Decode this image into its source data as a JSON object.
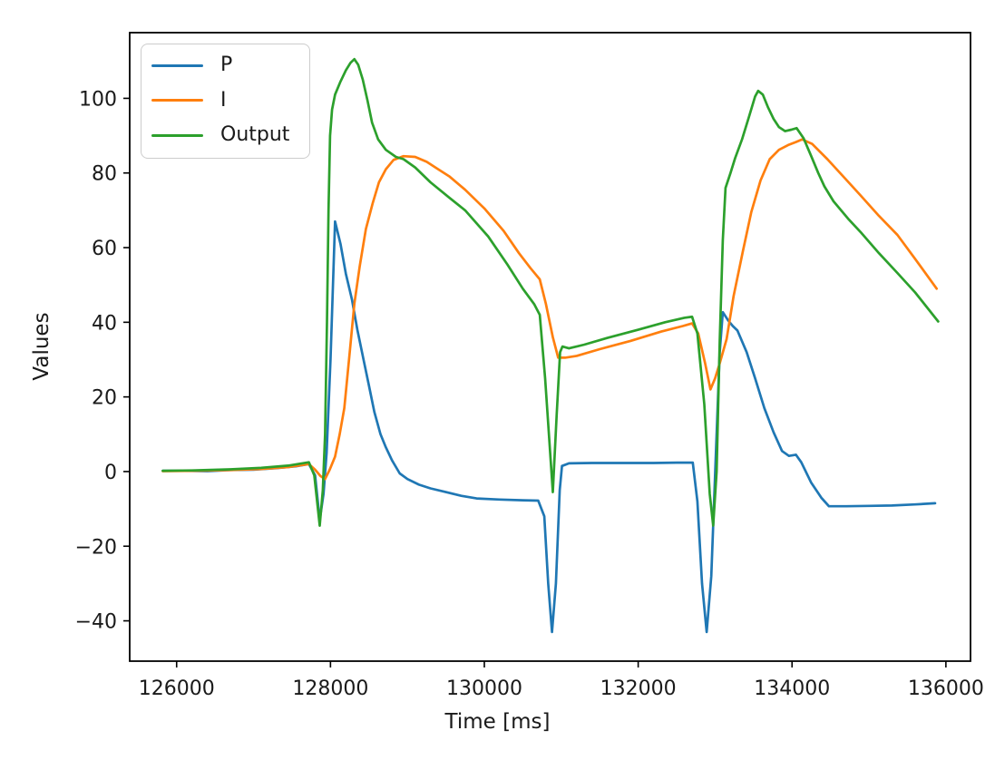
{
  "chart_data": {
    "type": "line",
    "title": "",
    "xlabel": "Time [ms]",
    "ylabel": "Values",
    "xlim": [
      125390,
      136320
    ],
    "ylim": [
      -50.8,
      117.6
    ],
    "x_ticks": [
      126000,
      128000,
      130000,
      132000,
      134000,
      136000
    ],
    "y_ticks": [
      -40,
      -20,
      0,
      20,
      40,
      60,
      80,
      100
    ],
    "grid": false,
    "legend_position": "upper-left",
    "background_color": "#ffffff",
    "frame_color": "#000000",
    "series": [
      {
        "name": "P",
        "color": "#1f77b4",
        "points": [
          [
            125820,
            0.2
          ],
          [
            126100,
            0.2
          ],
          [
            126400,
            0.1
          ],
          [
            126700,
            0.4
          ],
          [
            127000,
            0.5
          ],
          [
            127300,
            0.9
          ],
          [
            127550,
            1.4
          ],
          [
            127720,
            2
          ],
          [
            127800,
            -1
          ],
          [
            127860,
            -13
          ],
          [
            127910,
            -6
          ],
          [
            127950,
            5
          ],
          [
            128000,
            30
          ],
          [
            128060,
            67
          ],
          [
            128130,
            61
          ],
          [
            128200,
            53
          ],
          [
            128280,
            46
          ],
          [
            128350,
            38
          ],
          [
            128430,
            30
          ],
          [
            128500,
            23
          ],
          [
            128570,
            16
          ],
          [
            128650,
            10
          ],
          [
            128720,
            6.5
          ],
          [
            128800,
            3
          ],
          [
            128900,
            -0.5
          ],
          [
            129000,
            -2
          ],
          [
            129150,
            -3.5
          ],
          [
            129300,
            -4.5
          ],
          [
            129500,
            -5.5
          ],
          [
            129700,
            -6.5
          ],
          [
            129900,
            -7.2
          ],
          [
            130200,
            -7.5
          ],
          [
            130500,
            -7.7
          ],
          [
            130700,
            -7.8
          ],
          [
            130780,
            -12
          ],
          [
            130830,
            -30
          ],
          [
            130880,
            -43
          ],
          [
            130930,
            -30
          ],
          [
            130980,
            -5
          ],
          [
            131010,
            1.5
          ],
          [
            131100,
            2.2
          ],
          [
            131400,
            2.3
          ],
          [
            131800,
            2.3
          ],
          [
            132200,
            2.3
          ],
          [
            132500,
            2.4
          ],
          [
            132710,
            2.4
          ],
          [
            132770,
            -8
          ],
          [
            132830,
            -30
          ],
          [
            132890,
            -43
          ],
          [
            132950,
            -28
          ],
          [
            133010,
            5
          ],
          [
            133060,
            32
          ],
          [
            133100,
            42.7
          ],
          [
            133170,
            40.5
          ],
          [
            133230,
            39
          ],
          [
            133290,
            37.8
          ],
          [
            133410,
            32
          ],
          [
            133520,
            25
          ],
          [
            133640,
            17
          ],
          [
            133760,
            10.5
          ],
          [
            133870,
            5.5
          ],
          [
            133960,
            4.2
          ],
          [
            134050,
            4.5
          ],
          [
            134120,
            2.5
          ],
          [
            134250,
            -3
          ],
          [
            134380,
            -7
          ],
          [
            134480,
            -9.3
          ],
          [
            134700,
            -9.3
          ],
          [
            135000,
            -9.2
          ],
          [
            135300,
            -9.1
          ],
          [
            135600,
            -8.8
          ],
          [
            135860,
            -8.5
          ]
        ]
      },
      {
        "name": "I",
        "color": "#ff7f0e",
        "points": [
          [
            125820,
            0.1
          ],
          [
            126200,
            0.2
          ],
          [
            126700,
            0.4
          ],
          [
            127100,
            0.7
          ],
          [
            127450,
            1.2
          ],
          [
            127720,
            2
          ],
          [
            127800,
            0.5
          ],
          [
            127870,
            -1.2
          ],
          [
            127930,
            -2
          ],
          [
            127990,
            0.5
          ],
          [
            128060,
            4
          ],
          [
            128120,
            10
          ],
          [
            128180,
            17
          ],
          [
            128250,
            32
          ],
          [
            128310,
            45
          ],
          [
            128380,
            55
          ],
          [
            128460,
            65
          ],
          [
            128550,
            72
          ],
          [
            128630,
            77.5
          ],
          [
            128720,
            81
          ],
          [
            128820,
            83.5
          ],
          [
            128950,
            84.5
          ],
          [
            129100,
            84.3
          ],
          [
            129250,
            83
          ],
          [
            129400,
            81
          ],
          [
            129550,
            79
          ],
          [
            129750,
            75.5
          ],
          [
            130000,
            70.5
          ],
          [
            130250,
            64.5
          ],
          [
            130450,
            58.5
          ],
          [
            130600,
            54.5
          ],
          [
            130720,
            51.5
          ],
          [
            130800,
            45
          ],
          [
            130890,
            36
          ],
          [
            130960,
            30.5
          ],
          [
            131050,
            30.5
          ],
          [
            131200,
            31
          ],
          [
            131500,
            32.8
          ],
          [
            131900,
            35
          ],
          [
            132300,
            37.5
          ],
          [
            132580,
            39
          ],
          [
            132700,
            39.7
          ],
          [
            132780,
            37
          ],
          [
            132870,
            29
          ],
          [
            132940,
            22
          ],
          [
            133000,
            25
          ],
          [
            133060,
            29
          ],
          [
            133150,
            35.5
          ],
          [
            133240,
            47
          ],
          [
            133360,
            59
          ],
          [
            133470,
            69.5
          ],
          [
            133590,
            78
          ],
          [
            133710,
            83.7
          ],
          [
            133830,
            86.2
          ],
          [
            133950,
            87.5
          ],
          [
            134050,
            88.3
          ],
          [
            134130,
            89
          ],
          [
            134260,
            87.8
          ],
          [
            134460,
            83.7
          ],
          [
            134690,
            78.5
          ],
          [
            134890,
            74
          ],
          [
            135130,
            68.5
          ],
          [
            135370,
            63.4
          ],
          [
            135600,
            57
          ],
          [
            135880,
            49
          ]
        ]
      },
      {
        "name": "Output",
        "color": "#2ca02c",
        "points": [
          [
            125820,
            0.2
          ],
          [
            126200,
            0.3
          ],
          [
            126700,
            0.6
          ],
          [
            127100,
            1
          ],
          [
            127450,
            1.6
          ],
          [
            127720,
            2.5
          ],
          [
            127790,
            -1
          ],
          [
            127860,
            -14.5
          ],
          [
            127900,
            -5
          ],
          [
            127930,
            10
          ],
          [
            127955,
            40
          ],
          [
            127975,
            70
          ],
          [
            127995,
            90
          ],
          [
            128020,
            97
          ],
          [
            128060,
            101
          ],
          [
            128130,
            104.5
          ],
          [
            128200,
            107.5
          ],
          [
            128260,
            109.5
          ],
          [
            128310,
            110.5
          ],
          [
            128360,
            109
          ],
          [
            128420,
            105
          ],
          [
            128480,
            99.5
          ],
          [
            128540,
            93.5
          ],
          [
            128620,
            89
          ],
          [
            128720,
            86.2
          ],
          [
            128850,
            84.3
          ],
          [
            128950,
            83.7
          ],
          [
            129100,
            81.5
          ],
          [
            129300,
            77.5
          ],
          [
            129550,
            73.3
          ],
          [
            129750,
            70
          ],
          [
            130050,
            63
          ],
          [
            130300,
            55.5
          ],
          [
            130500,
            49
          ],
          [
            130650,
            44.8
          ],
          [
            130720,
            42
          ],
          [
            130790,
            25
          ],
          [
            130890,
            -5.5
          ],
          [
            130940,
            15
          ],
          [
            130985,
            32
          ],
          [
            131015,
            33.5
          ],
          [
            131100,
            33
          ],
          [
            131300,
            34
          ],
          [
            131600,
            35.8
          ],
          [
            132000,
            38
          ],
          [
            132350,
            40
          ],
          [
            132600,
            41.2
          ],
          [
            132700,
            41.5
          ],
          [
            132770,
            37
          ],
          [
            132860,
            18
          ],
          [
            132930,
            -6
          ],
          [
            132975,
            -14.5
          ],
          [
            133020,
            0
          ],
          [
            133060,
            35
          ],
          [
            133100,
            62
          ],
          [
            133135,
            76
          ],
          [
            133200,
            80
          ],
          [
            133260,
            84
          ],
          [
            133350,
            89
          ],
          [
            133440,
            95
          ],
          [
            133520,
            100.5
          ],
          [
            133560,
            102
          ],
          [
            133620,
            101
          ],
          [
            133690,
            97.5
          ],
          [
            133760,
            94.5
          ],
          [
            133830,
            92.3
          ],
          [
            133910,
            91.2
          ],
          [
            133990,
            91.6
          ],
          [
            134060,
            92
          ],
          [
            134150,
            89.3
          ],
          [
            134250,
            84.5
          ],
          [
            134340,
            80
          ],
          [
            134420,
            76.4
          ],
          [
            134540,
            72.4
          ],
          [
            134740,
            67.5
          ],
          [
            134890,
            64.2
          ],
          [
            135130,
            58.5
          ],
          [
            135370,
            53.2
          ],
          [
            135600,
            48
          ],
          [
            135900,
            40.2
          ]
        ]
      }
    ]
  }
}
